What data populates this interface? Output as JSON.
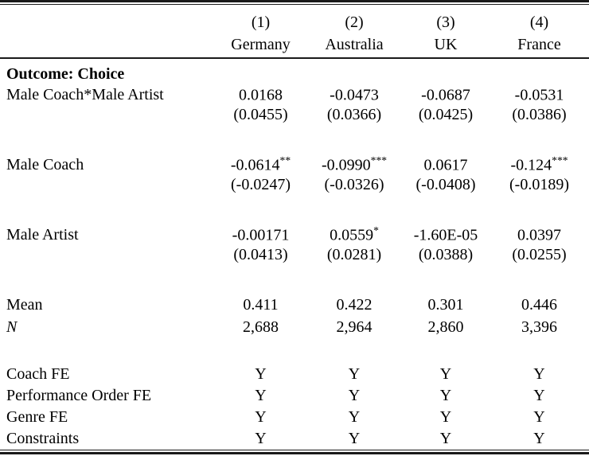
{
  "header": {
    "numbers": [
      "(1)",
      "(2)",
      "(3)",
      "(4)"
    ],
    "countries": [
      "Germany",
      "Australia",
      "UK",
      "France"
    ]
  },
  "section_title": "Outcome: Choice",
  "coefficients": [
    {
      "label": "Male Coach*Male Artist",
      "estimates": [
        "0.0168",
        "-0.0473",
        "-0.0687",
        "-0.0531"
      ],
      "stars": [
        "",
        "",
        "",
        ""
      ],
      "std_errors": [
        "(0.0455)",
        "(0.0366)",
        "(0.0425)",
        "(0.0386)"
      ]
    },
    {
      "label": "Male Coach",
      "estimates": [
        "-0.0614",
        "-0.0990",
        "0.0617",
        "-0.124"
      ],
      "stars": [
        "**",
        "***",
        "",
        "***"
      ],
      "std_errors": [
        "(-0.0247)",
        "(-0.0326)",
        "(-0.0408)",
        "(-0.0189)"
      ]
    },
    {
      "label": "Male Artist",
      "estimates": [
        "-0.00171",
        "0.0559",
        "-1.60E-05",
        "0.0397"
      ],
      "stars": [
        "",
        "*",
        "",
        ""
      ],
      "std_errors": [
        "(0.0413)",
        "(0.0281)",
        "(0.0388)",
        "(0.0255)"
      ]
    }
  ],
  "statistics": [
    {
      "label": "Mean",
      "values": [
        "0.411",
        "0.422",
        "0.301",
        "0.446"
      ]
    },
    {
      "label": "N",
      "values": [
        "2,688",
        "2,964",
        "2,860",
        "3,396"
      ]
    }
  ],
  "fixed_effects": [
    {
      "label": "Coach FE",
      "values": [
        "Y",
        "Y",
        "Y",
        "Y"
      ]
    },
    {
      "label": "Performance Order FE",
      "values": [
        "Y",
        "Y",
        "Y",
        "Y"
      ]
    },
    {
      "label": "Genre FE",
      "values": [
        "Y",
        "Y",
        "Y",
        "Y"
      ]
    },
    {
      "label": "Constraints",
      "values": [
        "Y",
        "Y",
        "Y",
        "Y"
      ]
    }
  ]
}
